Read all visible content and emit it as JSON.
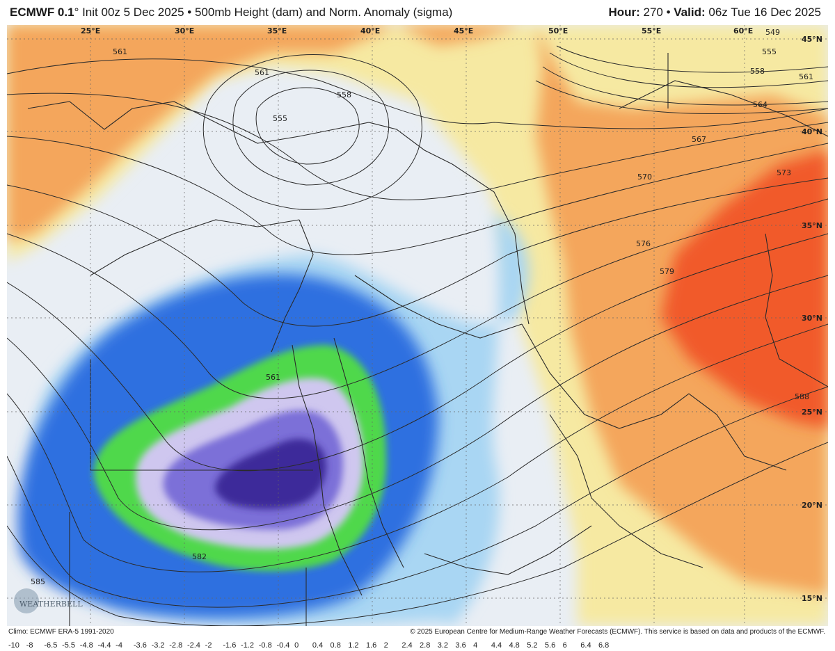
{
  "header": {
    "model": "ECMWF 0.1",
    "init_suffix": "° Init 00z 5 Dec 2025 • 500mb Height (dam) and Norm. Anomaly (sigma)",
    "hour_label": "Hour:",
    "hour_value": "270 •",
    "valid_label": "Valid:",
    "valid_value": "06z Tue 16 Dec 2025"
  },
  "map": {
    "lon_labels": [
      "25°E",
      "30°E",
      "35°E",
      "40°E",
      "45°E",
      "50°E",
      "55°E",
      "60°E"
    ],
    "lat_labels": [
      "45°N",
      "40°N",
      "35°N",
      "30°N",
      "25°N",
      "20°N",
      "15°N"
    ],
    "contour_labels": [
      "549",
      "555",
      "558",
      "561",
      "564",
      "567",
      "570",
      "573",
      "576",
      "579",
      "588",
      "561",
      "555",
      "558",
      "561",
      "561",
      "582",
      "585"
    ],
    "anomaly_colors": {
      "strong_negative": "#3c2a9a",
      "negative": "#7b6fd8",
      "light_negative": "#cfc7ef",
      "green_band": "#4fd84b",
      "blue": "#2f6fe0",
      "light_blue": "#a9d6f3",
      "neutral": "#e9eef4",
      "yellow": "#f6e9a2",
      "orange": "#f4a65c",
      "red": "#f15a2a"
    },
    "logo_text": "WEATHERBELL"
  },
  "footer": {
    "climo": "Climo: ECMWF ERA-5 1991-2020",
    "copyright": "© 2025 European Centre for Medium-Range Weather Forecasts (ECMWF). This service is based on data and products of the ECMWF."
  },
  "colorbar": {
    "labels": [
      "-10",
      "-8",
      "-6.5",
      "-5.5",
      "-4.8",
      "-4.4",
      "-4",
      "-3.6",
      "-3.2",
      "-2.8",
      "-2.4",
      "-2",
      "-1.6",
      "-1.2",
      "-0.8",
      "-0.4",
      "0",
      "0.4",
      "0.8",
      "1.2",
      "1.6",
      "2",
      "2.4",
      "2.8",
      "3.2",
      "3.6",
      "4",
      "4.4",
      "4.8",
      "5.2",
      "5.6",
      "6",
      "6.4",
      "6.8"
    ]
  }
}
